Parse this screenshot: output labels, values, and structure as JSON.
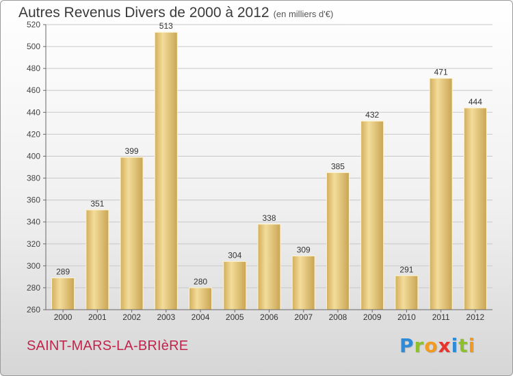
{
  "header": {
    "title": "Autres Revenus Divers de 2000 à 2012",
    "subtitle": "(en milliers d'€)"
  },
  "footer": {
    "place": "SAINT-MARS-LA-BRIèRE",
    "logo_letters": [
      {
        "ch": "P",
        "color": "#2e8bd8"
      },
      {
        "ch": "r",
        "color": "#8dbf2f"
      },
      {
        "ch": "o",
        "color": "#f29a1f"
      },
      {
        "ch": "x",
        "color": "#e8322e"
      },
      {
        "ch": "i",
        "color": "#2e8bd8"
      },
      {
        "ch": "t",
        "color": "#8dbf2f"
      },
      {
        "ch": "i",
        "color": "#f29a1f"
      }
    ]
  },
  "chart_data": {
    "type": "bar",
    "title": "Autres Revenus Divers de 2000 à 2012",
    "subtitle": "(en milliers d'€)",
    "categories": [
      "2000",
      "2001",
      "2002",
      "2003",
      "2004",
      "2005",
      "2006",
      "2007",
      "2008",
      "2009",
      "2010",
      "2011",
      "2012"
    ],
    "values": [
      289,
      351,
      399,
      513,
      280,
      304,
      338,
      309,
      385,
      432,
      291,
      471,
      444
    ],
    "ylim": [
      260,
      520
    ],
    "yticks": [
      260,
      280,
      300,
      320,
      340,
      360,
      380,
      400,
      420,
      440,
      460,
      480,
      500,
      520
    ],
    "grid": true,
    "legend": "none",
    "bar_color": "#e3c271",
    "grid_color": "#c8c8c8"
  }
}
